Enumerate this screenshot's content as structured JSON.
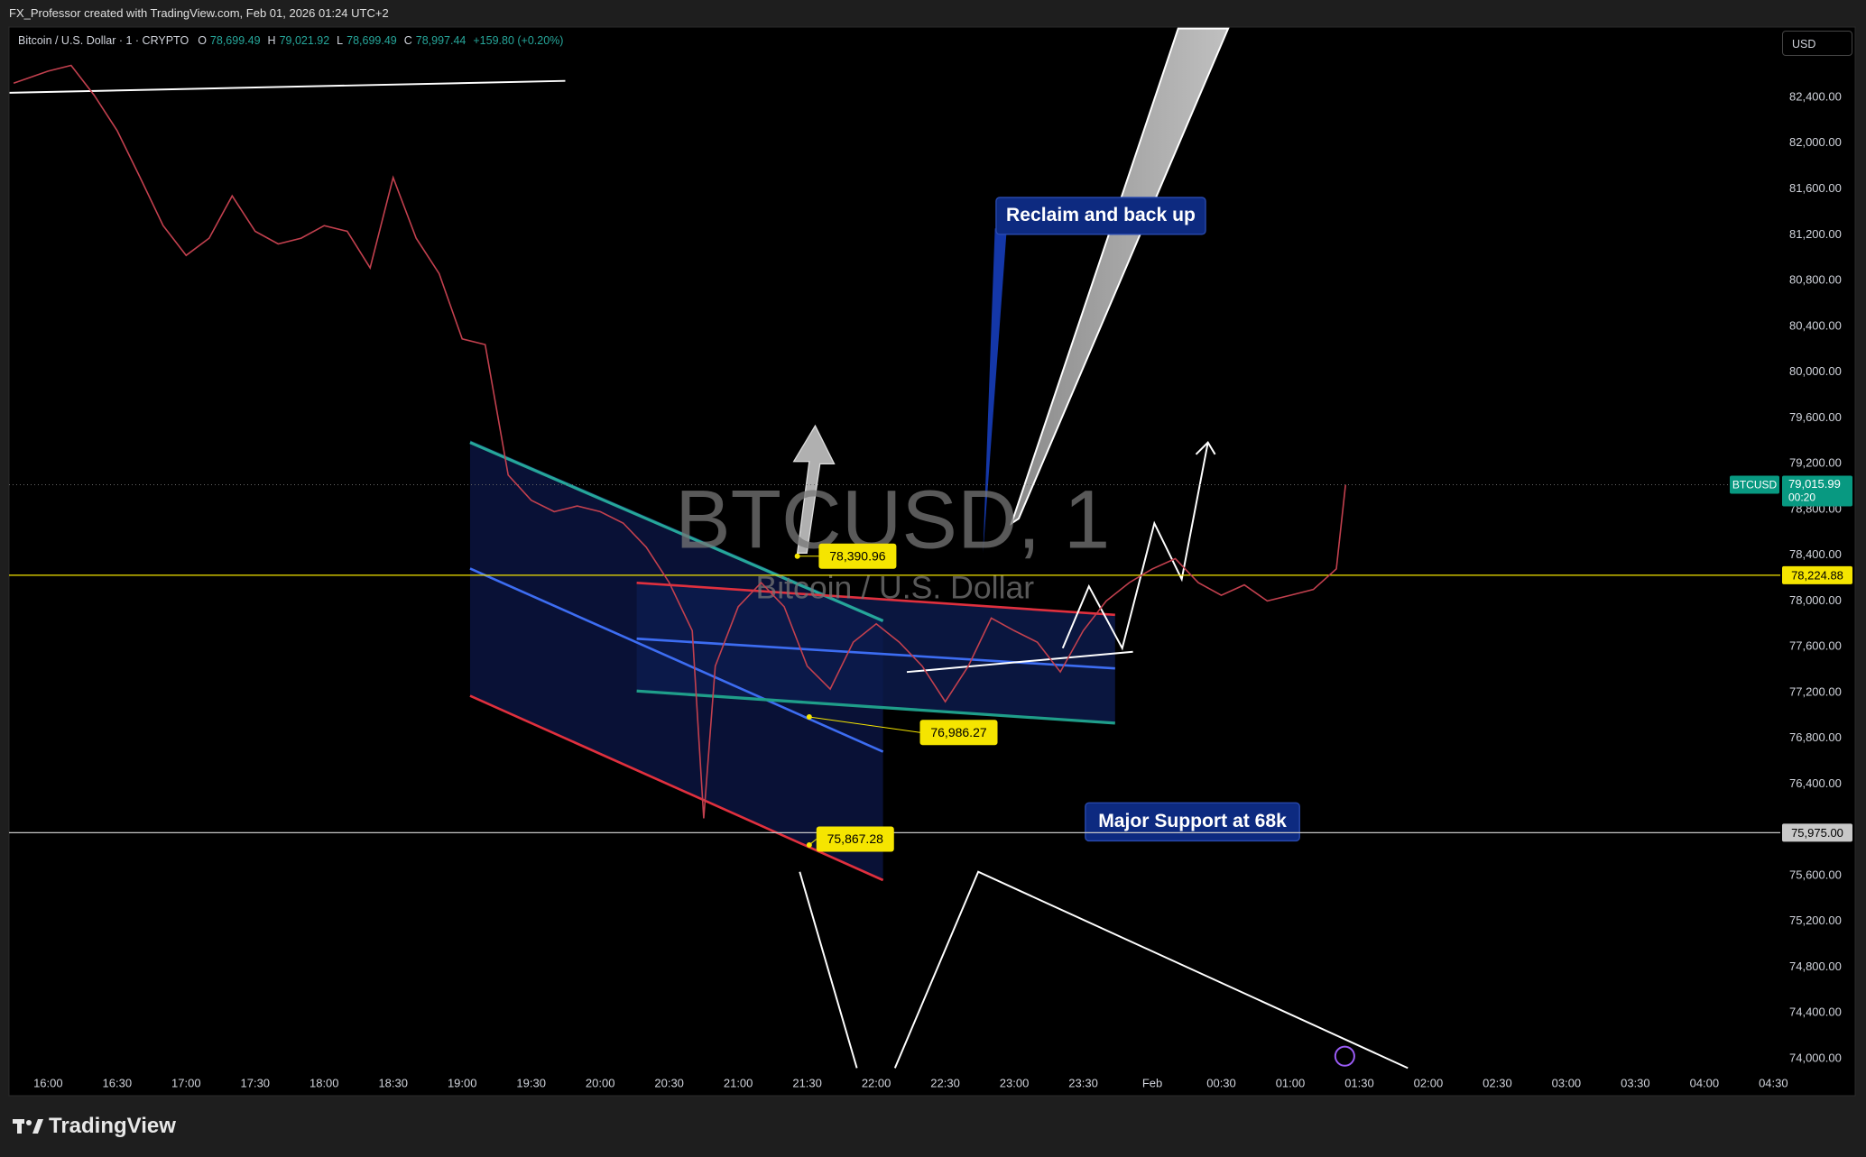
{
  "header": {
    "credit": "FX_Professor created with TradingView.com, Feb 01, 2026 01:24 UTC+2",
    "currency": "USD",
    "brand": "TradingView"
  },
  "legend": {
    "symbol": "Bitcoin / U.S. Dollar · 1 · CRYPTO",
    "ohlc": [
      {
        "label": "O",
        "value": "78,699.49"
      },
      {
        "label": "H",
        "value": "79,021.92"
      },
      {
        "label": "L",
        "value": "78,699.49"
      },
      {
        "label": "C",
        "value": "78,997.44"
      }
    ],
    "change": "+159.80 (+0.20%)"
  },
  "watermark": {
    "title": "BTCUSD, 1",
    "subtitle": "Bitcoin / U.S. Dollar"
  },
  "annotations": [
    {
      "text": "Reclaim and back up"
    },
    {
      "text": "Major Support at 68k"
    }
  ],
  "chart_data": {
    "type": "line",
    "x": [
      "15:45",
      "16:00",
      "16:10",
      "16:20",
      "16:30",
      "16:40",
      "16:50",
      "17:00",
      "17:10",
      "17:20",
      "17:30",
      "17:40",
      "17:50",
      "18:00",
      "18:10",
      "18:20",
      "18:30",
      "18:40",
      "18:50",
      "19:00",
      "19:10",
      "19:20",
      "19:30",
      "19:40",
      "19:50",
      "20:00",
      "20:10",
      "20:20",
      "20:30",
      "20:40",
      "20:45",
      "20:50",
      "21:00",
      "21:10",
      "21:20",
      "21:30",
      "21:40",
      "21:50",
      "22:00",
      "22:10",
      "22:20",
      "22:30",
      "22:40",
      "22:50",
      "23:00",
      "23:10",
      "23:20",
      "23:30",
      "23:40",
      "23:50",
      "00:00",
      "00:10",
      "00:20",
      "00:30",
      "00:40",
      "00:50",
      "01:00",
      "01:10",
      "01:20",
      "01:24"
    ],
    "series": [
      {
        "name": "BTCUSD",
        "color": "#c2404e",
        "values": [
          82525,
          82630,
          82680,
          82420,
          82110,
          81700,
          81280,
          81020,
          81170,
          81540,
          81230,
          81120,
          81170,
          81280,
          81230,
          80910,
          81700,
          81170,
          80860,
          80290,
          80240,
          79100,
          78880,
          78780,
          78830,
          78780,
          78680,
          78470,
          78160,
          77740,
          76100,
          77430,
          77950,
          78160,
          77950,
          77430,
          77230,
          77640,
          77800,
          77640,
          77430,
          77120,
          77430,
          77850,
          77740,
          77640,
          77380,
          77740,
          78000,
          78160,
          78280,
          78370,
          78160,
          78050,
          78140,
          78000,
          78050,
          78100,
          78280,
          79015.99
        ]
      }
    ],
    "xlim": [
      "15:43",
      "04:33"
    ],
    "xticks": [
      "16:00",
      "16:30",
      "17:00",
      "17:30",
      "18:00",
      "18:30",
      "19:00",
      "19:30",
      "20:00",
      "20:30",
      "21:00",
      "21:30",
      "22:00",
      "22:30",
      "23:00",
      "23:30",
      {
        "value": "00:00",
        "label": "Feb"
      },
      "00:30",
      "01:00",
      "01:30",
      "02:00",
      "02:30",
      "03:00",
      "03:30",
      "04:00",
      "04:30"
    ],
    "ylim": [
      73874,
      83015
    ],
    "yticks": [
      {
        "value": 74000,
        "label": "74,000.00"
      },
      {
        "value": 74400,
        "label": "74,400.00"
      },
      {
        "value": 74800,
        "label": "74,800.00"
      },
      {
        "value": 75200,
        "label": "75,200.00"
      },
      {
        "value": 75600,
        "label": "75,600.00"
      },
      {
        "value": 76000,
        "label": "76,000.00"
      },
      {
        "value": 76400,
        "label": "76,400.00"
      },
      {
        "value": 76800,
        "label": "76,800.00"
      },
      {
        "value": 77200,
        "label": "77,200.00"
      },
      {
        "value": 77600,
        "label": "77,600.00"
      },
      {
        "value": 78000,
        "label": "78,000.00"
      },
      {
        "value": 78400,
        "label": "78,400.00"
      },
      {
        "value": 78800,
        "label": "78,800.00"
      },
      {
        "value": 79200,
        "label": "79,200.00"
      },
      {
        "value": 79600,
        "label": "79,600.00"
      },
      {
        "value": 80000,
        "label": "80,000.00"
      },
      {
        "value": 80400,
        "label": "80,400.00"
      },
      {
        "value": 80800,
        "label": "80,800.00"
      },
      {
        "value": 81200,
        "label": "81,200.00"
      },
      {
        "value": 81600,
        "label": "81,600.00"
      },
      {
        "value": 82000,
        "label": "82,000.00"
      },
      {
        "value": 82400,
        "label": "82,400.00"
      }
    ],
    "grid": false,
    "hlines": [
      {
        "value": 78224.88,
        "label": "78,224.88",
        "color": "#f5e500"
      },
      {
        "value": 75975.0,
        "label": "75,975.00",
        "color": "#c8c8c8"
      }
    ],
    "last": {
      "value": 79015.99,
      "label": "79,015.99",
      "countdown": "00:20",
      "symbol": "BTCUSD",
      "color": "#089981"
    },
    "price_labels": [
      {
        "value": 78390.96,
        "label": "78,390.96"
      },
      {
        "value": 76986.27,
        "label": "76,986.27"
      },
      {
        "value": 75867.28,
        "label": "75,867.28"
      }
    ]
  }
}
